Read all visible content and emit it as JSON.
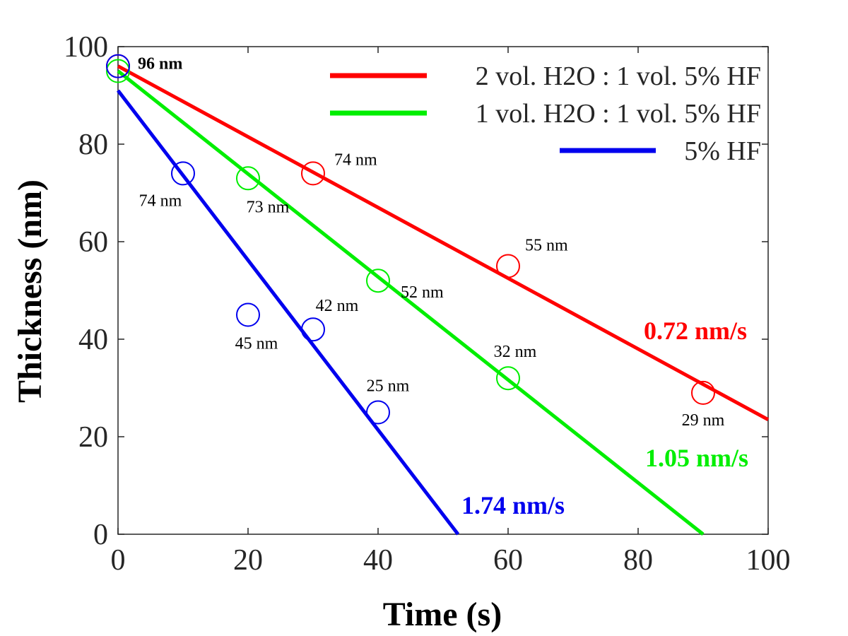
{
  "chart_data": {
    "type": "scatter",
    "xlabel": "Time (s)",
    "ylabel": "Thickness (nm)",
    "xlim": [
      0,
      100
    ],
    "ylim": [
      0,
      100
    ],
    "xticks": [
      "0",
      "20",
      "40",
      "60",
      "80",
      "100"
    ],
    "yticks": [
      "0",
      "20",
      "40",
      "60",
      "80",
      "100"
    ],
    "grid": false,
    "legend_position": "top-right",
    "series": [
      {
        "name": "2 vol. H2O : 1 vol. 5% HF",
        "color": "#ff0000",
        "points": [
          {
            "x": 0,
            "y": 96,
            "label": ""
          },
          {
            "x": 30,
            "y": 74,
            "label": "74 nm"
          },
          {
            "x": 60,
            "y": 55,
            "label": "55 nm"
          },
          {
            "x": 90,
            "y": 29,
            "label": "29 nm"
          }
        ],
        "fit": {
          "x": [
            0,
            100
          ],
          "y": [
            96,
            23.5
          ]
        },
        "rate_label": "0.72 nm/s"
      },
      {
        "name": "1 vol. H2O : 1 vol. 5% HF",
        "color": "#00ee00",
        "points": [
          {
            "x": 0,
            "y": 95,
            "label": ""
          },
          {
            "x": 20,
            "y": 73,
            "label": "73 nm"
          },
          {
            "x": 40,
            "y": 52,
            "label": "52 nm"
          },
          {
            "x": 60,
            "y": 32,
            "label": "32 nm"
          }
        ],
        "fit": {
          "x": [
            0,
            90
          ],
          "y": [
            95,
            0
          ]
        },
        "rate_label": "1.05 nm/s"
      },
      {
        "name": "5% HF",
        "color": "#0000ee",
        "points": [
          {
            "x": 0,
            "y": 96,
            "label": "96 nm"
          },
          {
            "x": 10,
            "y": 74,
            "label": "74 nm"
          },
          {
            "x": 20,
            "y": 45,
            "label": "45 nm"
          },
          {
            "x": 30,
            "y": 42,
            "label": "42 nm"
          },
          {
            "x": 40,
            "y": 25,
            "label": "25 nm"
          }
        ],
        "fit": {
          "x": [
            0,
            52.3
          ],
          "y": [
            91,
            0
          ]
        },
        "rate_label": "1.74 nm/s"
      }
    ]
  }
}
